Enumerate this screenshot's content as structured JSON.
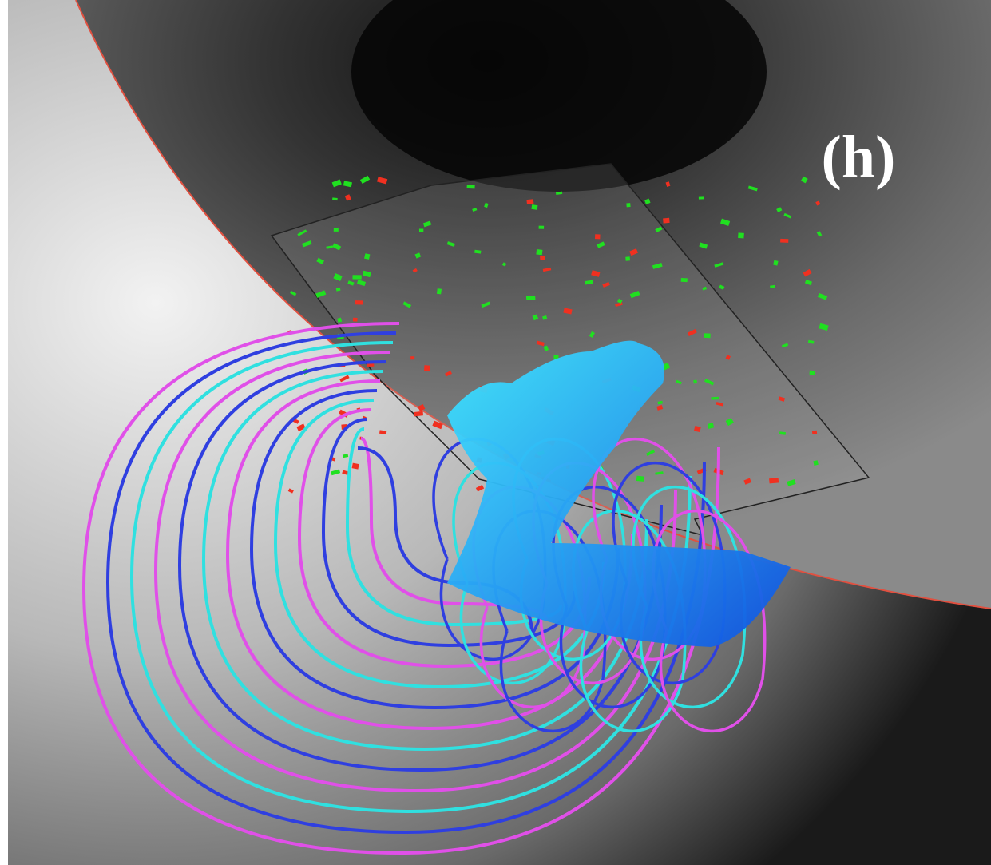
{
  "panel_label": "(h)"
}
